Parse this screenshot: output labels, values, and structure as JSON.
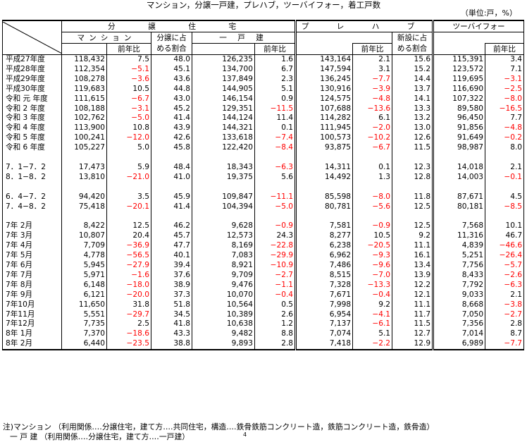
{
  "title": "マンション，分譲一戸建，プレハブ，ツーバイフォー，着工戸数",
  "unit": "（単位:戸，%）",
  "headers": {
    "bunjo_jutaku": "分　譲　住　宅",
    "mansion": "マンション",
    "ikkodate": "一 戸 建",
    "prefab": "プ レ ハ ブ",
    "twobyfour": "ツーバイフォー",
    "zennen_hi": "前年比",
    "bunjo_share_1": "分譲に占",
    "bunjo_share_2": "める割合",
    "shinsetsu_share_1": "新設に占",
    "shinsetsu_share_2": "める割合"
  },
  "rows": [
    {
      "label": "平成27年度",
      "m": "118,432",
      "mp": "7.5",
      "ms": "48.0",
      "i": "126,235",
      "ip": "1.6",
      "p": "143,164",
      "pp": "2.1",
      "ps": "15.6",
      "t": "115,391",
      "tp": "3.4"
    },
    {
      "label": "平成28年度",
      "m": "112,354",
      "mp": "−5.1",
      "ms": "45.1",
      "i": "134,700",
      "ip": "6.7",
      "p": "147,594",
      "pp": "3.1",
      "ps": "15.2",
      "t": "123,572",
      "tp": "7.1"
    },
    {
      "label": "平成29年度",
      "m": "108,278",
      "mp": "−3.6",
      "ms": "43.6",
      "i": "137,849",
      "ip": "2.3",
      "p": "136,245",
      "pp": "−7.7",
      "ps": "14.4",
      "t": "119,695",
      "tp": "−3.1"
    },
    {
      "label": "平成30年度",
      "m": "119,683",
      "mp": "10.5",
      "ms": "44.8",
      "i": "144,905",
      "ip": "5.1",
      "p": "130,916",
      "pp": "−3.9",
      "ps": "13.7",
      "t": "116,690",
      "tp": "−2.5"
    },
    {
      "label": "令和 元 年度",
      "m": "111,615",
      "mp": "−6.7",
      "ms": "43.0",
      "i": "146,154",
      "ip": "0.9",
      "p": "124,575",
      "pp": "−4.8",
      "ps": "14.1",
      "t": "107,322",
      "tp": "−8.0"
    },
    {
      "label": "令和 2 年度",
      "m": "108,188",
      "mp": "−3.1",
      "ms": "45.2",
      "i": "129,351",
      "ip": "−11.5",
      "p": "107,688",
      "pp": "−13.6",
      "ps": "13.3",
      "t": "89,580",
      "tp": "−16.5"
    },
    {
      "label": "令和 3 年度",
      "m": "102,762",
      "mp": "−5.0",
      "ms": "41.4",
      "i": "144,124",
      "ip": "11.4",
      "p": "114,282",
      "pp": "6.1",
      "ps": "13.2",
      "t": "96,450",
      "tp": "7.7"
    },
    {
      "label": "令和 4 年度",
      "m": "113,900",
      "mp": "10.8",
      "ms": "43.9",
      "i": "144,321",
      "ip": "0.1",
      "p": "111,945",
      "pp": "−2.0",
      "ps": "13.0",
      "t": "91,856",
      "tp": "−4.8"
    },
    {
      "label": "令和 5 年度",
      "m": "100,241",
      "mp": "−12.0",
      "ms": "42.6",
      "i": "133,618",
      "ip": "−7.4",
      "p": "100,573",
      "pp": "−10.2",
      "ps": "12.6",
      "t": "91,649",
      "tp": "−0.2"
    },
    {
      "label": "令和 6 年度",
      "m": "105,227",
      "mp": "5.0",
      "ms": "45.8",
      "i": "122,420",
      "ip": "−8.4",
      "p": "93,875",
      "pp": "−6.7",
      "ps": "11.5",
      "t": "98,987",
      "tp": "8.0"
    },
    {
      "gap": true
    },
    {
      "label": "7．1−7．2",
      "m": "17,473",
      "mp": "5.9",
      "ms": "48.4",
      "i": "18,343",
      "ip": "−6.3",
      "p": "14,311",
      "pp": "0.1",
      "ps": "12.3",
      "t": "14,018",
      "tp": "2.1"
    },
    {
      "label": "8．1−8．2",
      "m": "13,810",
      "mp": "−21.0",
      "ms": "41.0",
      "i": "19,375",
      "ip": "5.6",
      "p": "14,492",
      "pp": "1.3",
      "ps": "12.8",
      "t": "14,003",
      "tp": "−0.1"
    },
    {
      "gap": true
    },
    {
      "label": "6．4−7．2",
      "m": "94,420",
      "mp": "3.5",
      "ms": "45.9",
      "i": "109,847",
      "ip": "−11.1",
      "p": "85,598",
      "pp": "−8.0",
      "ps": "11.8",
      "t": "87,671",
      "tp": "4.5"
    },
    {
      "label": "7．4−8．2",
      "m": "75,418",
      "mp": "−20.1",
      "ms": "41.4",
      "i": "104,394",
      "ip": "−5.0",
      "p": "80,781",
      "pp": "−5.6",
      "ps": "12.5",
      "t": "80,181",
      "tp": "−8.5"
    },
    {
      "gap": true
    },
    {
      "label": "7年 2月",
      "m": "8,422",
      "mp": "12.5",
      "ms": "46.2",
      "i": "9,628",
      "ip": "−0.9",
      "p": "7,581",
      "pp": "−0.9",
      "ps": "12.5",
      "t": "7,568",
      "tp": "10.1"
    },
    {
      "label": "7年 3月",
      "m": "10,807",
      "mp": "20.4",
      "ms": "45.7",
      "i": "12,573",
      "ip": "24.3",
      "p": "8,277",
      "pp": "10.5",
      "ps": "9.2",
      "t": "11,316",
      "tp": "46.7"
    },
    {
      "label": "7年 4月",
      "m": "7,709",
      "mp": "−36.9",
      "ms": "47.7",
      "i": "8,169",
      "ip": "−22.8",
      "p": "6,238",
      "pp": "−20.5",
      "ps": "11.1",
      "t": "4,839",
      "tp": "−46.6"
    },
    {
      "label": "7年 5月",
      "m": "4,778",
      "mp": "−56.5",
      "ms": "40.1",
      "i": "7,083",
      "ip": "−29.9",
      "p": "6,962",
      "pp": "−9.3",
      "ps": "16.1",
      "t": "5,251",
      "tp": "−26.4"
    },
    {
      "label": "7年 6月",
      "m": "5,945",
      "mp": "−27.9",
      "ms": "39.4",
      "i": "8,921",
      "ip": "−10.9",
      "p": "7,486",
      "pp": "−9.6",
      "ps": "13.4",
      "t": "7,756",
      "tp": "−5.7"
    },
    {
      "label": "7年 7月",
      "m": "5,971",
      "mp": "−1.6",
      "ms": "37.6",
      "i": "9,709",
      "ip": "−2.7",
      "p": "8,515",
      "pp": "−7.0",
      "ps": "13.9",
      "t": "8,433",
      "tp": "−2.6"
    },
    {
      "label": "7年 8月",
      "m": "6,148",
      "mp": "−18.0",
      "ms": "38.9",
      "i": "9,476",
      "ip": "−1.1",
      "p": "7,328",
      "pp": "−13.3",
      "ps": "12.2",
      "t": "7,792",
      "tp": "−6.3"
    },
    {
      "label": "7年 9月",
      "m": "6,121",
      "mp": "−20.0",
      "ms": "37.3",
      "i": "10,070",
      "ip": "−0.4",
      "p": "7,671",
      "pp": "−0.4",
      "ps": "12.1",
      "t": "9,033",
      "tp": "2.1"
    },
    {
      "label": "7年10月",
      "m": "11,650",
      "mp": "31.8",
      "ms": "51.8",
      "i": "10,564",
      "ip": "0.5",
      "p": "7,998",
      "pp": "9.2",
      "ps": "11.1",
      "t": "8,668",
      "tp": "−3.8"
    },
    {
      "label": "7年11月",
      "m": "5,551",
      "mp": "−29.7",
      "ms": "34.5",
      "i": "10,389",
      "ip": "2.6",
      "p": "6,954",
      "pp": "−4.1",
      "ps": "11.7",
      "t": "7,050",
      "tp": "−2.7"
    },
    {
      "label": "7年12月",
      "m": "7,735",
      "mp": "2.5",
      "ms": "41.8",
      "i": "10,638",
      "ip": "1.2",
      "p": "7,137",
      "pp": "−6.1",
      "ps": "11.5",
      "t": "7,356",
      "tp": "2.8"
    },
    {
      "label": "8年 1月",
      "m": "7,370",
      "mp": "−18.6",
      "ms": "43.3",
      "i": "9,482",
      "ip": "8.8",
      "p": "7,074",
      "pp": "5.1",
      "ps": "12.7",
      "t": "7,014",
      "tp": "8.7"
    },
    {
      "label": "8年 2月",
      "m": "6,440",
      "mp": "−23.5",
      "ms": "38.8",
      "i": "9,893",
      "ip": "2.8",
      "p": "7,418",
      "pp": "−2.2",
      "ps": "12.9",
      "t": "6,989",
      "tp": "−7.7"
    }
  ],
  "notes": {
    "line1": "注)マンション （利用関係‥‥分譲住宅，建て方‥‥共同住宅，構造‥‥鉄骨鉄筋コンクリート造，鉄筋コンクリート造，鉄骨造）",
    "line2": "一 戸 建 （利用関係‥‥分譲住宅，建て方‥‥一戸建）",
    "page_number": "4"
  },
  "colors": {
    "negative": "#ff0000",
    "text": "#000000",
    "border": "#000000"
  }
}
